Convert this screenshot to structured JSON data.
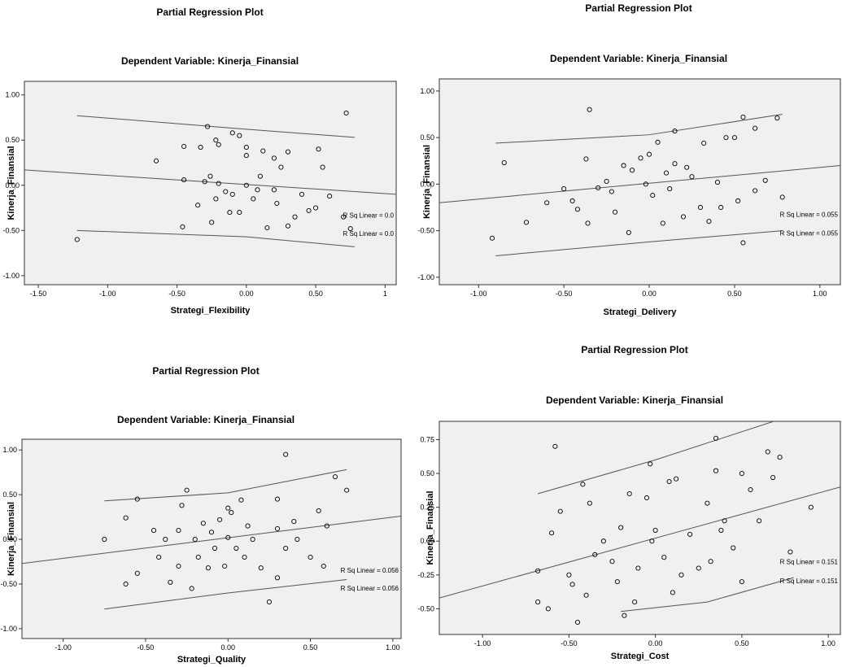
{
  "chart_data": [
    {
      "type": "scatter",
      "title": "Partial Regression Plot",
      "subtitle": "Dependent Variable: Kinerja_Finansial",
      "x_label": "Strategi_Flexibility",
      "y_label": "Kinerja_Finansial",
      "xlim": [
        -1.6,
        1.08
      ],
      "ylim": [
        -1.1,
        1.15
      ],
      "xticks": [
        {
          "value": -1.5,
          "label": "-1.50"
        },
        {
          "value": -1,
          "label": "-1.00"
        },
        {
          "value": -0.5,
          "label": "-0.50"
        },
        {
          "value": 0,
          "label": "0.00"
        },
        {
          "value": 0.5,
          "label": "0.50"
        },
        1
      ],
      "yticks": [
        {
          "value": -1,
          "label": "-1.00"
        },
        {
          "value": -0.5,
          "label": "-0.50"
        },
        {
          "value": 0,
          "label": "0.00"
        },
        {
          "value": 0.5,
          "label": "0.50"
        },
        {
          "value": 1,
          "label": "1.00"
        }
      ],
      "x": [
        -1.22,
        -0.65,
        -0.45,
        -0.46,
        -0.45,
        -0.33,
        -0.28,
        -0.3,
        -0.26,
        -0.22,
        -0.2,
        -0.22,
        -0.2,
        -0.25,
        -0.15,
        -0.1,
        -0.1,
        -0.05,
        -0.05,
        0,
        0,
        0,
        0.05,
        0.1,
        0.12,
        0.15,
        0.2,
        0.2,
        0.22,
        0.25,
        0.3,
        0.3,
        0.35,
        0.4,
        0.45,
        0.5,
        0.52,
        0.55,
        0.6,
        0.7,
        0.72,
        0.75,
        -0.12,
        -0.35,
        0.08
      ],
      "values": [
        -0.6,
        0.27,
        0.43,
        -0.46,
        0.06,
        0.42,
        0.65,
        0.04,
        0.1,
        0.5,
        0.45,
        -0.15,
        0.02,
        -0.41,
        -0.07,
        -0.1,
        0.58,
        0.55,
        -0.3,
        0.33,
        0.42,
        0,
        -0.15,
        0.1,
        0.38,
        -0.47,
        0.3,
        -0.05,
        -0.2,
        0.2,
        0.37,
        -0.45,
        -0.35,
        -0.1,
        -0.28,
        -0.25,
        0.4,
        0.2,
        -0.12,
        -0.35,
        0.8,
        -0.48,
        -0.3,
        -0.22,
        -0.05
      ],
      "fit_x": [
        -1.6,
        1.08
      ],
      "fit_y": [
        0.17,
        -0.1
      ],
      "band_x": [
        -1.22,
        0,
        0.78
      ],
      "upper_y": [
        0.77,
        0.62,
        0.53
      ],
      "lower_y": [
        -0.5,
        -0.57,
        -0.68
      ],
      "annotations": [
        "R Sq Linear = 0.0",
        "R Sq Linear = 0.0"
      ],
      "point_color": "#000000",
      "line_color": "#555555",
      "background": "#f0f0f0"
    },
    {
      "type": "scatter",
      "title": "Partial Regression Plot",
      "subtitle": "Dependent Variable: Kinerja_Finansial",
      "x_label": "Strategi_Delivery",
      "y_label": "Kinerja_Finansial",
      "xlim": [
        -1.23,
        1.12
      ],
      "ylim": [
        -1.08,
        1.13
      ],
      "xticks": [
        {
          "value": -1,
          "label": "-1.00"
        },
        {
          "value": -0.5,
          "label": "-0.50"
        },
        {
          "value": 0,
          "label": "0.00"
        },
        {
          "value": 0.5,
          "label": "0.50"
        },
        {
          "value": 1,
          "label": "1.00"
        }
      ],
      "yticks": [
        {
          "value": -1,
          "label": "-1.00"
        },
        {
          "value": -0.5,
          "label": "-0.50"
        },
        {
          "value": 0,
          "label": "0.00"
        },
        {
          "value": 0.5,
          "label": "0.50"
        },
        {
          "value": 1,
          "label": "1.00"
        }
      ],
      "x": [
        -0.92,
        -0.85,
        -0.72,
        -0.6,
        -0.5,
        -0.45,
        -0.42,
        -0.37,
        -0.36,
        -0.35,
        -0.3,
        -0.25,
        -0.22,
        -0.2,
        -0.15,
        -0.12,
        -0.1,
        -0.05,
        0,
        0.02,
        0.05,
        0.08,
        0.1,
        0.12,
        0.15,
        0.15,
        0.2,
        0.22,
        0.25,
        0.3,
        0.32,
        0.35,
        0.4,
        0.45,
        0.5,
        0.52,
        0.55,
        0.55,
        0.62,
        0.62,
        0.68,
        0.75,
        0.78,
        -0.02,
        0.42
      ],
      "values": [
        -0.58,
        0.23,
        -0.41,
        -0.2,
        -0.05,
        -0.18,
        -0.27,
        0.27,
        -0.42,
        0.8,
        -0.04,
        0.03,
        -0.08,
        -0.3,
        0.2,
        -0.52,
        0.15,
        0.28,
        0.32,
        -0.12,
        0.45,
        -0.42,
        0.12,
        -0.05,
        0.57,
        0.22,
        -0.35,
        0.18,
        0.08,
        -0.25,
        0.44,
        -0.4,
        0.02,
        0.5,
        0.5,
        -0.18,
        0.72,
        -0.63,
        0.6,
        -0.07,
        0.04,
        0.71,
        -0.14,
        0,
        -0.25
      ],
      "fit_x": [
        -1.23,
        1.12
      ],
      "fit_y": [
        -0.2,
        0.2
      ],
      "band_x": [
        -0.9,
        0,
        0.78
      ],
      "upper_y": [
        0.44,
        0.53,
        0.75
      ],
      "lower_y": [
        -0.77,
        -0.62,
        -0.5
      ],
      "annotations": [
        "R Sq Linear = 0.055",
        "R Sq Linear = 0.055"
      ],
      "point_color": "#000000",
      "line_color": "#555555",
      "background": "#f0f0f0"
    },
    {
      "type": "scatter",
      "title": "Partial Regression Plot",
      "subtitle": "Dependent Variable: Kinerja_Finansial",
      "x_label": "Strategi_Quality",
      "y_label": "Kinerja_Finansial",
      "xlim": [
        -1.25,
        1.05
      ],
      "ylim": [
        -1.11,
        1.12
      ],
      "xticks": [
        {
          "value": -1,
          "label": "-1.00"
        },
        {
          "value": -0.5,
          "label": "-0.50"
        },
        {
          "value": 0,
          "label": "0.00"
        },
        {
          "value": 0.5,
          "label": "0.50"
        },
        {
          "value": 1,
          "label": "1.00"
        }
      ],
      "yticks": [
        {
          "value": -1,
          "label": "-1.00"
        },
        {
          "value": -0.5,
          "label": "-0.50"
        },
        {
          "value": 0,
          "label": "0.00"
        },
        {
          "value": 0.5,
          "label": "0.50"
        },
        {
          "value": 1,
          "label": "1.00"
        }
      ],
      "x": [
        -0.75,
        -0.62,
        -0.62,
        -0.55,
        -0.55,
        -0.45,
        -0.42,
        -0.38,
        -0.35,
        -0.3,
        -0.28,
        -0.25,
        -0.22,
        -0.2,
        -0.18,
        -0.15,
        -0.12,
        -0.1,
        -0.08,
        -0.05,
        -0.02,
        0,
        0.02,
        0.05,
        0.08,
        0.1,
        0.12,
        0.15,
        0.2,
        0.25,
        0.3,
        0.3,
        0.35,
        0.35,
        0.4,
        0.42,
        0.5,
        0.55,
        0.58,
        0.6,
        0.65,
        0.72,
        0,
        -0.3,
        0.3
      ],
      "values": [
        0,
        0.24,
        -0.5,
        0.45,
        -0.38,
        0.1,
        -0.2,
        0,
        -0.48,
        -0.3,
        0.38,
        0.55,
        -0.55,
        0,
        -0.2,
        0.18,
        -0.32,
        0.08,
        -0.1,
        0.22,
        -0.3,
        0.02,
        0.3,
        -0.1,
        0.44,
        -0.2,
        0.15,
        0,
        -0.32,
        -0.7,
        0.12,
        0.45,
        -0.1,
        0.95,
        0.2,
        0,
        -0.2,
        0.32,
        -0.3,
        0.15,
        0.7,
        0.55,
        0.35,
        0.1,
        -0.43
      ],
      "fit_x": [
        -1.25,
        1.05
      ],
      "fit_y": [
        -0.27,
        0.26
      ],
      "band_x": [
        -0.75,
        0,
        0.72
      ],
      "upper_y": [
        0.43,
        0.52,
        0.78
      ],
      "lower_y": [
        -0.78,
        -0.6,
        -0.45
      ],
      "annotations": [
        "R Sq Linear = 0.056",
        "R Sq Linear = 0.056"
      ],
      "point_color": "#000000",
      "line_color": "#555555",
      "background": "#f0f0f0"
    },
    {
      "type": "scatter",
      "title": "Partial Regression Plot",
      "subtitle": "Dependent Variable: Kinerja_Finansial",
      "x_label": "Strategi_Cost",
      "y_label": "Kinerja_Finansial",
      "xlim": [
        -1.25,
        1.07
      ],
      "ylim": [
        -0.69,
        0.885
      ],
      "xticks": [
        {
          "value": -1,
          "label": "-1.00"
        },
        {
          "value": -0.5,
          "label": "-0.50"
        },
        {
          "value": 0,
          "label": "0.00"
        },
        {
          "value": 0.5,
          "label": "0.50"
        },
        {
          "value": 1,
          "label": "1.00"
        }
      ],
      "yticks": [
        {
          "value": -0.5,
          "label": "-0.50"
        },
        {
          "value": -0.25,
          "label": "-0.25"
        },
        {
          "value": 0,
          "label": "0.00"
        },
        {
          "value": 0.25,
          "label": "0.25"
        },
        {
          "value": 0.5,
          "label": "0.50"
        },
        {
          "value": 0.75,
          "label": "0.75"
        }
      ],
      "x": [
        -0.68,
        -0.68,
        -0.62,
        -0.6,
        -0.58,
        -0.55,
        -0.5,
        -0.48,
        -0.45,
        -0.42,
        -0.4,
        -0.38,
        -0.35,
        -0.3,
        -0.25,
        -0.22,
        -0.2,
        -0.18,
        -0.15,
        -0.12,
        -0.1,
        -0.05,
        -0.03,
        -0.02,
        0,
        0.05,
        0.08,
        0.1,
        0.12,
        0.15,
        0.2,
        0.25,
        0.3,
        0.32,
        0.35,
        0.35,
        0.38,
        0.4,
        0.45,
        0.5,
        0.5,
        0.55,
        0.6,
        0.65,
        0.68,
        0.72,
        0.78,
        0.9
      ],
      "values": [
        -0.22,
        -0.45,
        -0.5,
        0.06,
        0.7,
        0.22,
        -0.25,
        -0.32,
        -0.6,
        0.42,
        -0.4,
        0.28,
        -0.1,
        0,
        -0.15,
        -0.3,
        0.1,
        -0.55,
        0.35,
        -0.45,
        -0.2,
        0.32,
        0.57,
        0,
        0.08,
        -0.12,
        0.44,
        -0.38,
        0.46,
        -0.25,
        0.05,
        -0.2,
        0.28,
        -0.15,
        0.52,
        0.76,
        0.08,
        0.15,
        -0.05,
        0.5,
        -0.3,
        0.38,
        0.15,
        0.66,
        0.47,
        0.62,
        -0.08,
        0.25
      ],
      "fit_x": [
        -1.25,
        1.07
      ],
      "fit_y": [
        -0.42,
        0.4
      ],
      "band_x": [
        -0.68,
        0,
        0.72
      ],
      "upper_y": [
        0.35,
        0.6,
        0.9
      ],
      "lower_x": [
        -0.2,
        0.3,
        0.8
      ],
      "lower_y": [
        -0.52,
        -0.45,
        -0.27
      ],
      "annotations": [
        "R Sq Linear = 0.151",
        "R Sq Linear = 0.151"
      ],
      "point_color": "#000000",
      "line_color": "#555555",
      "background": "#f0f0f0"
    }
  ]
}
